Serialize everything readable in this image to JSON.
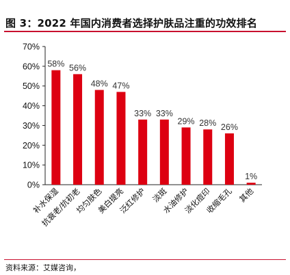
{
  "figure": {
    "title": "图 3：2022 年国内消费者选择护肤品注重的功效排名",
    "source": "资料来源：艾媒咨询，"
  },
  "chart_data": {
    "type": "bar",
    "categories": [
      "补水保湿",
      "抗衰老/抗初老",
      "均匀肤色",
      "美白提亮",
      "泛红修护",
      "淡斑",
      "水油修护",
      "淡化痘印",
      "收缩毛孔",
      "其他"
    ],
    "values": [
      58,
      56,
      48,
      47,
      33,
      33,
      29,
      28,
      26,
      1
    ],
    "data_labels": [
      "58%",
      "56%",
      "48%",
      "47%",
      "33%",
      "33%",
      "29%",
      "28%",
      "26%",
      "1%"
    ],
    "y_ticks": [
      "0%",
      "10%",
      "20%",
      "30%",
      "40%",
      "50%",
      "60%",
      "70%"
    ],
    "ylim": [
      0,
      70
    ],
    "bar_color": "#dd0011",
    "grid": false,
    "legend": "none"
  }
}
